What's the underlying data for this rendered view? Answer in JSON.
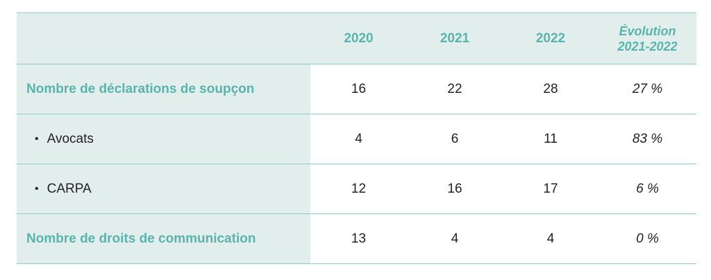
{
  "table": {
    "header": {
      "label": "",
      "years": [
        "2020",
        "2021",
        "2022"
      ],
      "evolution_line1": "Évolution",
      "evolution_line2": "2021-2022"
    },
    "rows": [
      {
        "label": "Nombre de déclarations de soupçon",
        "v2020": "16",
        "v2021": "22",
        "v2022": "28",
        "evolution": "27 %"
      },
      {
        "label": "Avocats",
        "v2020": "4",
        "v2021": "6",
        "v2022": "11",
        "evolution": "83 %"
      },
      {
        "label": "CARPA",
        "v2020": "12",
        "v2021": "16",
        "v2022": "17",
        "evolution": "6 %"
      },
      {
        "label": "Nombre de droits de communication",
        "v2020": "13",
        "v2021": "4",
        "v2022": "4",
        "evolution": "0 %"
      }
    ],
    "bullet": "•"
  },
  "colors": {
    "accent": "#5ab3ad",
    "label_background": "#e2eeec",
    "rule": "#8fc9c9",
    "text": "#222222"
  }
}
